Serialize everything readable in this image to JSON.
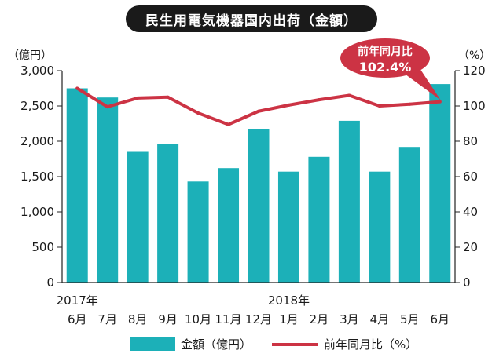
{
  "chart_data": {
    "type": "bar",
    "title": "民生用電気機器国内出荷（金額）",
    "left_unit": "（億円）",
    "right_unit": "（%）",
    "categories": [
      "6月",
      "7月",
      "8月",
      "9月",
      "10月",
      "11月",
      "12月",
      "1月",
      "2月",
      "3月",
      "4月",
      "5月",
      "6月"
    ],
    "year_labels": [
      {
        "index": 0,
        "label": "2017年"
      },
      {
        "index": 7,
        "label": "2018年"
      }
    ],
    "series": [
      {
        "name": "金額（億円）",
        "type": "bar",
        "axis": "left",
        "color": "#1cb0b8",
        "values": [
          2750,
          2620,
          1850,
          1960,
          1430,
          1620,
          2170,
          1570,
          1780,
          2290,
          1570,
          1920,
          2810
        ]
      },
      {
        "name": "前年同月比（%）",
        "type": "line",
        "axis": "right",
        "color": "#cc3344",
        "values": [
          110,
          99.5,
          104.5,
          105,
          96,
          89.5,
          97,
          100.5,
          103.5,
          106,
          100,
          101,
          102.4
        ]
      }
    ],
    "y_left": {
      "ylim": [
        0,
        3000
      ],
      "ticks": [
        "0",
        "500",
        "1,000",
        "1,500",
        "2,000",
        "2,500",
        "3,000"
      ]
    },
    "y_right": {
      "ylim": [
        0,
        120
      ],
      "ticks": [
        "0",
        "20",
        "40",
        "60",
        "80",
        "100",
        "120"
      ]
    },
    "callout": {
      "line1": "前年同月比",
      "line2": "102.4%",
      "color": "#cc3344"
    },
    "legend": {
      "items": [
        "金額（億円）",
        "前年同月比（%）"
      ],
      "position": "bottom"
    },
    "grid": false
  }
}
